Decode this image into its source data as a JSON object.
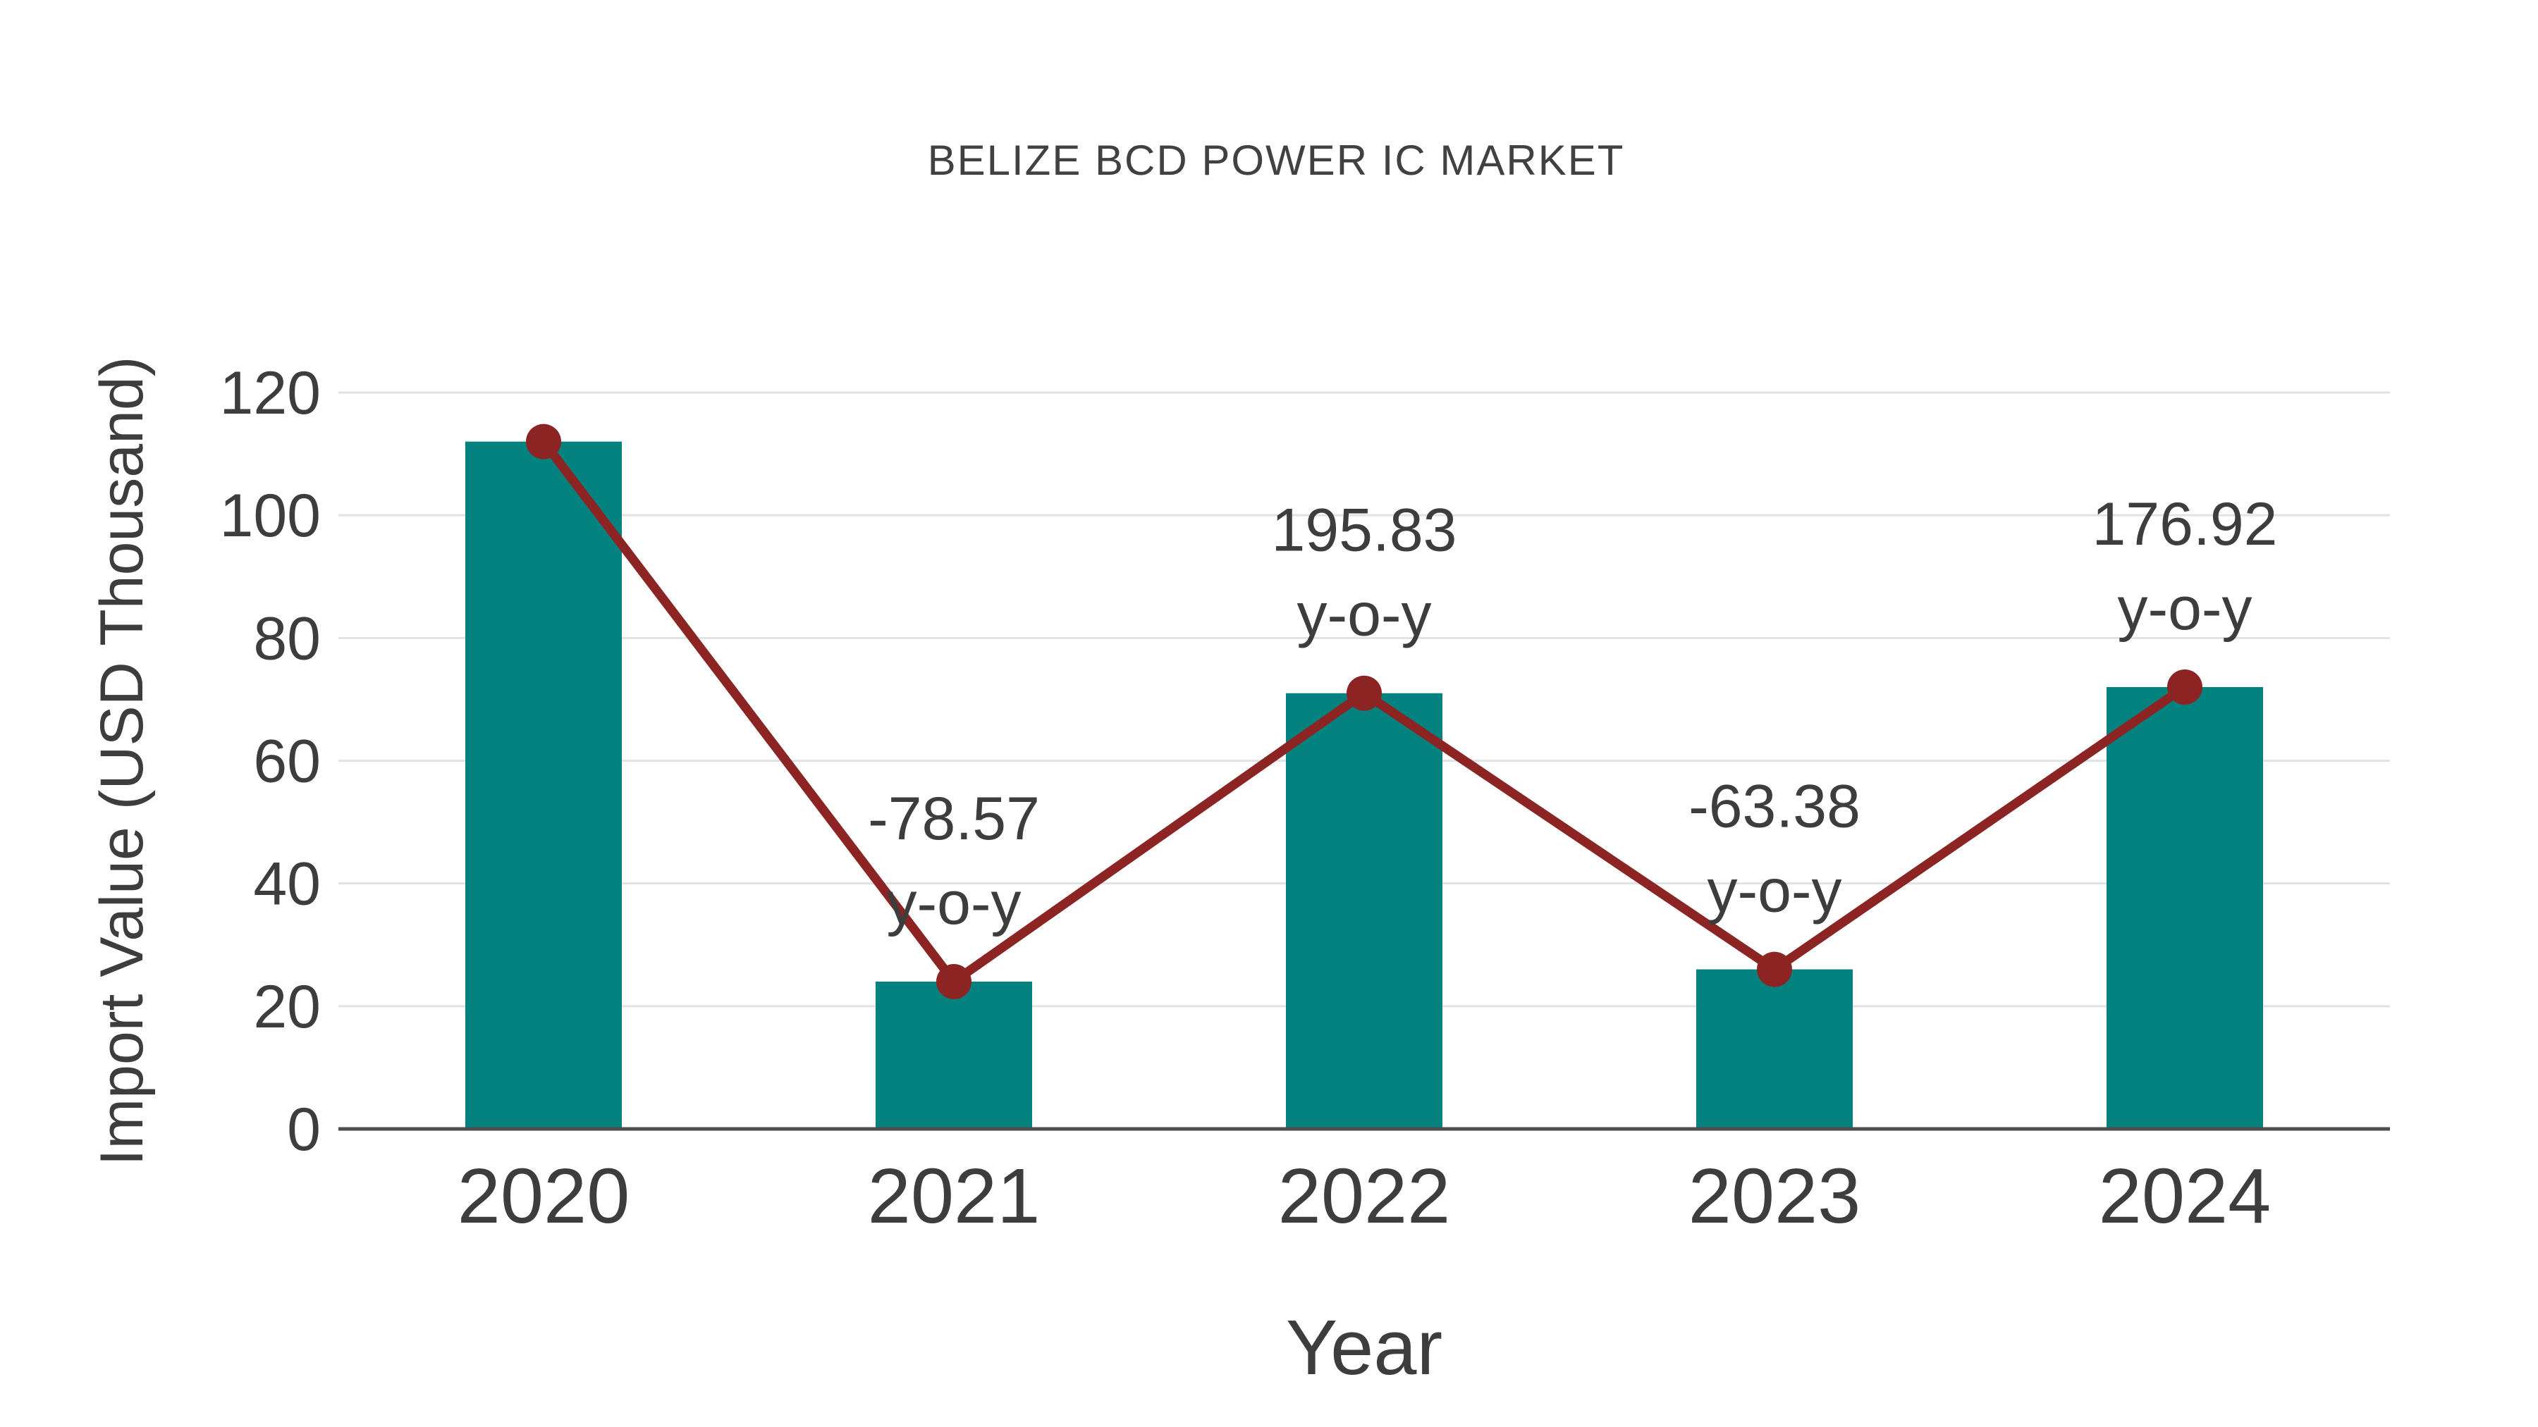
{
  "chart_data": {
    "type": "bar",
    "title": "BELIZE BCD POWER IC MARKET",
    "xlabel": "Year",
    "ylabel": "Import Value (USD Thousand)",
    "categories": [
      "2020",
      "2021",
      "2022",
      "2023",
      "2024"
    ],
    "series": [
      {
        "name": "Import Value",
        "type": "bar",
        "color": "#038280",
        "values": [
          112,
          24,
          71,
          26,
          72
        ]
      },
      {
        "name": "Year-over-year trend",
        "type": "line",
        "color": "#8b2422",
        "marker": "circle",
        "values": [
          112,
          24,
          71,
          26,
          72
        ]
      }
    ],
    "annotations": [
      {
        "category": "2021",
        "line1": "-78.57",
        "line2": "y-o-y"
      },
      {
        "category": "2022",
        "line1": "195.83",
        "line2": "y-o-y"
      },
      {
        "category": "2023",
        "line1": "-63.38",
        "line2": "y-o-y"
      },
      {
        "category": "2024",
        "line1": "176.92",
        "line2": "y-o-y"
      }
    ],
    "yticks": [
      0,
      20,
      40,
      60,
      80,
      100,
      120
    ],
    "ylim": [
      0,
      120
    ],
    "grid": true,
    "legend_position": "none",
    "colors": {
      "bar": "#038280",
      "line": "#8b2422",
      "marker": "#8b2422",
      "grid": "#e2e2e2",
      "axis": "#4d4d4d",
      "text": "#3d3d3d",
      "background": "#ffffff"
    }
  }
}
